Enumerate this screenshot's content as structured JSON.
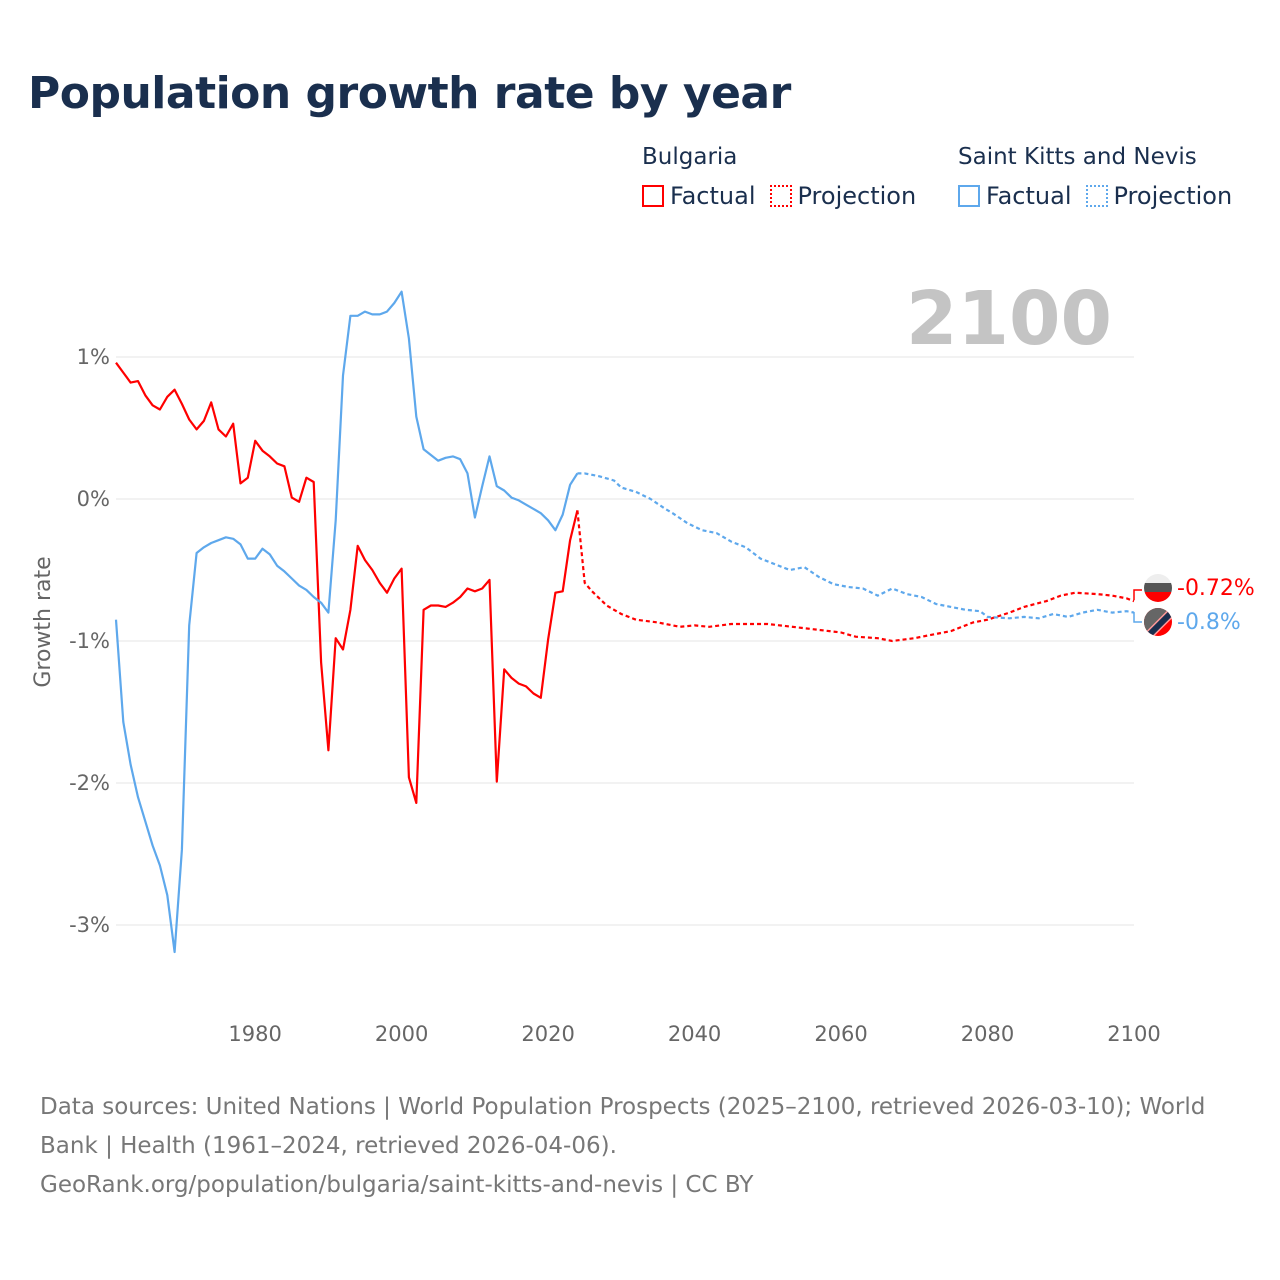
{
  "title": "Population growth rate by year",
  "current_year_label": "2100",
  "legend": [
    {
      "group": "Bulgaria",
      "factual": "Factual",
      "projection": "Projection",
      "color": "#ff0000"
    },
    {
      "group": "Saint Kitts and Nevis",
      "factual": "Factual",
      "projection": "Projection",
      "color": "#5ea8ec"
    }
  ],
  "end_labels": {
    "bulgaria": "-0.72%",
    "skn": "-0.8%"
  },
  "footer": {
    "line1": "Data sources: United Nations | World Population Prospects (2025–2100, retrieved 2026-03-10); World Bank | Health (1961–2024, retrieved 2026-04-06).",
    "line2": "GeoRank.org/population/bulgaria/saint-kitts-and-nevis | CC BY"
  },
  "chart_data": {
    "type": "line",
    "title": "Population growth rate by year",
    "xlabel": "",
    "ylabel": "Growth rate",
    "xlim": [
      1961,
      2100
    ],
    "ylim": [
      -3.5,
      1.6
    ],
    "x_ticks": [
      "1980",
      "2000",
      "2020",
      "2040",
      "2060",
      "2080",
      "2100"
    ],
    "y_ticks": [
      {
        "v": 1,
        "label": "1%"
      },
      {
        "v": 0,
        "label": "0%"
      },
      {
        "v": -1,
        "label": "-1%"
      },
      {
        "v": -2,
        "label": "-2%"
      },
      {
        "v": -3,
        "label": "-3%"
      }
    ],
    "grid": true,
    "series": [
      {
        "name": "Bulgaria Factual",
        "color": "#ff0000",
        "dashed": false,
        "x_start": 1961,
        "values": [
          0.96,
          0.89,
          0.82,
          0.83,
          0.73,
          0.66,
          0.63,
          0.72,
          0.77,
          0.67,
          0.56,
          0.49,
          0.55,
          0.68,
          0.49,
          0.44,
          0.53,
          0.11,
          0.15,
          0.41,
          0.34,
          0.3,
          0.25,
          0.23,
          0.01,
          -0.02,
          0.15,
          0.12,
          -1.15,
          -1.77,
          -0.98,
          -1.06,
          -0.78,
          -0.33,
          -0.43,
          -0.5,
          -0.59,
          -0.66,
          -0.56,
          -0.49,
          -1.96,
          -2.14,
          -0.78,
          -0.75,
          -0.75,
          -0.76,
          -0.73,
          -0.69,
          -0.63,
          -0.65,
          -0.63,
          -0.57,
          -1.99,
          -1.2,
          -1.26,
          -1.3,
          -1.32,
          -1.37,
          -1.4,
          -0.99,
          -0.66,
          -0.65,
          -0.29,
          -0.08
        ]
      },
      {
        "name": "Bulgaria Projection",
        "color": "#ff0000",
        "dashed": true,
        "points": [
          [
            2024,
            -0.08
          ],
          [
            2025,
            -0.59
          ],
          [
            2026,
            -0.65
          ],
          [
            2027,
            -0.7
          ],
          [
            2028,
            -0.75
          ],
          [
            2029,
            -0.78
          ],
          [
            2030,
            -0.81
          ],
          [
            2032,
            -0.85
          ],
          [
            2035,
            -0.87
          ],
          [
            2038,
            -0.9
          ],
          [
            2040,
            -0.89
          ],
          [
            2042,
            -0.9
          ],
          [
            2045,
            -0.88
          ],
          [
            2050,
            -0.88
          ],
          [
            2055,
            -0.91
          ],
          [
            2060,
            -0.94
          ],
          [
            2062,
            -0.97
          ],
          [
            2065,
            -0.98
          ],
          [
            2067,
            -1.0
          ],
          [
            2070,
            -0.98
          ],
          [
            2072,
            -0.96
          ],
          [
            2075,
            -0.93
          ],
          [
            2078,
            -0.87
          ],
          [
            2080,
            -0.85
          ],
          [
            2083,
            -0.8
          ],
          [
            2085,
            -0.76
          ],
          [
            2088,
            -0.72
          ],
          [
            2090,
            -0.68
          ],
          [
            2092,
            -0.66
          ],
          [
            2095,
            -0.67
          ],
          [
            2097,
            -0.68
          ],
          [
            2099,
            -0.7
          ],
          [
            2100,
            -0.72
          ]
        ]
      },
      {
        "name": "Saint Kitts and Nevis Factual",
        "color": "#5ea8ec",
        "dashed": false,
        "x_start": 1961,
        "values": [
          -0.85,
          -1.57,
          -1.87,
          -2.1,
          -2.27,
          -2.44,
          -2.58,
          -2.79,
          -3.19,
          -2.47,
          -0.89,
          -0.38,
          -0.34,
          -0.31,
          -0.29,
          -0.27,
          -0.28,
          -0.32,
          -0.42,
          -0.42,
          -0.35,
          -0.39,
          -0.47,
          -0.51,
          -0.56,
          -0.61,
          -0.64,
          -0.69,
          -0.73,
          -0.8,
          -0.15,
          0.87,
          1.29,
          1.29,
          1.32,
          1.3,
          1.3,
          1.32,
          1.38,
          1.46,
          1.13,
          0.58,
          0.35,
          0.31,
          0.27,
          0.29,
          0.3,
          0.28,
          0.18,
          -0.13,
          0.09,
          0.3,
          0.09,
          0.06,
          0.01,
          -0.01,
          -0.04,
          -0.07,
          -0.1,
          -0.15,
          -0.22,
          -0.11,
          0.1,
          0.18
        ]
      },
      {
        "name": "Saint Kitts and Nevis Projection",
        "color": "#5ea8ec",
        "dashed": true,
        "points": [
          [
            2024,
            0.18
          ],
          [
            2025,
            0.18
          ],
          [
            2027,
            0.16
          ],
          [
            2029,
            0.13
          ],
          [
            2030,
            0.08
          ],
          [
            2032,
            0.05
          ],
          [
            2034,
            0.0
          ],
          [
            2036,
            -0.07
          ],
          [
            2037,
            -0.1
          ],
          [
            2039,
            -0.17
          ],
          [
            2041,
            -0.22
          ],
          [
            2043,
            -0.24
          ],
          [
            2045,
            -0.3
          ],
          [
            2047,
            -0.34
          ],
          [
            2049,
            -0.42
          ],
          [
            2051,
            -0.46
          ],
          [
            2053,
            -0.5
          ],
          [
            2055,
            -0.48
          ],
          [
            2057,
            -0.55
          ],
          [
            2059,
            -0.6
          ],
          [
            2061,
            -0.62
          ],
          [
            2063,
            -0.63
          ],
          [
            2065,
            -0.68
          ],
          [
            2067,
            -0.63
          ],
          [
            2069,
            -0.67
          ],
          [
            2071,
            -0.69
          ],
          [
            2073,
            -0.74
          ],
          [
            2075,
            -0.76
          ],
          [
            2077,
            -0.78
          ],
          [
            2079,
            -0.79
          ],
          [
            2080,
            -0.83
          ],
          [
            2083,
            -0.84
          ],
          [
            2085,
            -0.83
          ],
          [
            2087,
            -0.84
          ],
          [
            2089,
            -0.81
          ],
          [
            2091,
            -0.83
          ],
          [
            2093,
            -0.8
          ],
          [
            2095,
            -0.78
          ],
          [
            2097,
            -0.8
          ],
          [
            2099,
            -0.79
          ],
          [
            2100,
            -0.8
          ]
        ]
      }
    ]
  }
}
